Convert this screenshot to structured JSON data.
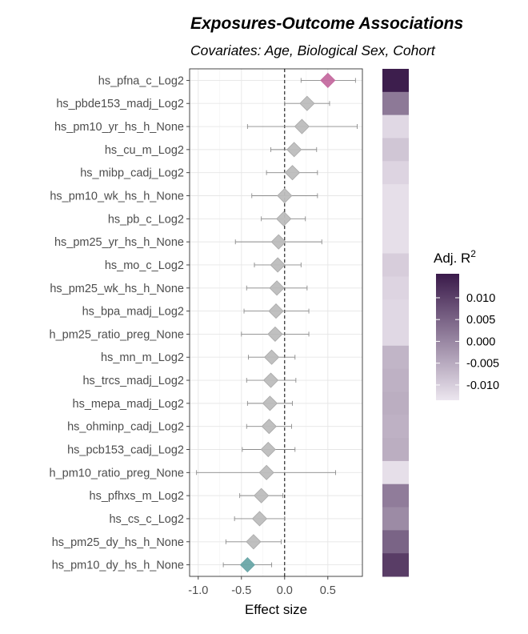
{
  "chart_data": {
    "type": "forest",
    "title": "Exposures-Outcome Associations",
    "subtitle": "Covariates: Age, Biological Sex,  Cohort",
    "xlabel": "Effect size",
    "ylabel": "",
    "xlim": [
      -1.1,
      0.9
    ],
    "xticks": [
      -1.0,
      -0.5,
      0.0,
      0.5
    ],
    "xtick_labels": [
      "-1.0",
      "-0.5",
      "0.0",
      "0.5"
    ],
    "reference_line": 0,
    "grid": true,
    "legend": {
      "title": "Adj. R",
      "title_superscript": "2",
      "placement": "right",
      "range": [
        -0.0135,
        0.0155
      ],
      "ticks": [
        0.01,
        0.005,
        0.0,
        -0.005,
        -0.01
      ],
      "tick_labels": [
        "0.010",
        "0.005",
        "0.000",
        "-0.005",
        "-0.010"
      ]
    },
    "colors": {
      "positive_significant": "#c56ba0",
      "negative_significant": "#6aa6a8",
      "not_significant": "#bdbdbd",
      "ci_line": "#8c8c8c",
      "r2_low": "#ece6ef",
      "r2_high": "#3a1a4a"
    },
    "rows": [
      {
        "label": "hs_pfna_c_Log2",
        "estimate": 0.5,
        "ci": [
          0.19,
          0.82
        ],
        "adj_r2": 0.015,
        "sig": "positive"
      },
      {
        "label": "hs_pbde153_madj_Log2",
        "estimate": 0.26,
        "ci": [
          0.0,
          0.52
        ],
        "adj_r2": 0.002,
        "sig": "none"
      },
      {
        "label": "hs_pm10_yr_hs_h_None",
        "estimate": 0.2,
        "ci": [
          -0.43,
          0.84
        ],
        "adj_r2": -0.0115,
        "sig": "none"
      },
      {
        "label": "hs_cu_m_Log2",
        "estimate": 0.11,
        "ci": [
          -0.16,
          0.37
        ],
        "adj_r2": -0.009,
        "sig": "none"
      },
      {
        "label": "hs_mibp_cadj_Log2",
        "estimate": 0.09,
        "ci": [
          -0.21,
          0.38
        ],
        "adj_r2": -0.011,
        "sig": "none"
      },
      {
        "label": "hs_pm10_wk_hs_h_None",
        "estimate": 0.0,
        "ci": [
          -0.38,
          0.38
        ],
        "adj_r2": -0.0125,
        "sig": "none"
      },
      {
        "label": "hs_pb_c_Log2",
        "estimate": -0.01,
        "ci": [
          -0.27,
          0.24
        ],
        "adj_r2": -0.0125,
        "sig": "none"
      },
      {
        "label": "hs_pm25_yr_hs_h_None",
        "estimate": -0.07,
        "ci": [
          -0.57,
          0.43
        ],
        "adj_r2": -0.0125,
        "sig": "none"
      },
      {
        "label": "hs_mo_c_Log2",
        "estimate": -0.08,
        "ci": [
          -0.35,
          0.19
        ],
        "adj_r2": -0.01,
        "sig": "none"
      },
      {
        "label": "hs_pm25_wk_hs_h_None",
        "estimate": -0.09,
        "ci": [
          -0.44,
          0.26
        ],
        "adj_r2": -0.011,
        "sig": "none"
      },
      {
        "label": "hs_bpa_madj_Log2",
        "estimate": -0.1,
        "ci": [
          -0.47,
          0.28
        ],
        "adj_r2": -0.0115,
        "sig": "none"
      },
      {
        "label": "h_pm25_ratio_preg_None",
        "estimate": -0.11,
        "ci": [
          -0.5,
          0.28
        ],
        "adj_r2": -0.0115,
        "sig": "none"
      },
      {
        "label": "hs_mn_m_Log2",
        "estimate": -0.15,
        "ci": [
          -0.42,
          0.12
        ],
        "adj_r2": -0.0065,
        "sig": "none"
      },
      {
        "label": "hs_trcs_madj_Log2",
        "estimate": -0.16,
        "ci": [
          -0.44,
          0.13
        ],
        "adj_r2": -0.006,
        "sig": "none"
      },
      {
        "label": "hs_mepa_madj_Log2",
        "estimate": -0.17,
        "ci": [
          -0.43,
          0.09
        ],
        "adj_r2": -0.0055,
        "sig": "none"
      },
      {
        "label": "hs_ohminp_cadj_Log2",
        "estimate": -0.18,
        "ci": [
          -0.44,
          0.08
        ],
        "adj_r2": -0.006,
        "sig": "none"
      },
      {
        "label": "hs_pcb153_cadj_Log2",
        "estimate": -0.19,
        "ci": [
          -0.49,
          0.12
        ],
        "adj_r2": -0.0055,
        "sig": "none"
      },
      {
        "label": "h_pm10_ratio_preg_None",
        "estimate": -0.21,
        "ci": [
          -1.02,
          0.59
        ],
        "adj_r2": -0.0125,
        "sig": "none"
      },
      {
        "label": "hs_pfhxs_m_Log2",
        "estimate": -0.27,
        "ci": [
          -0.52,
          -0.02
        ],
        "adj_r2": 0.0015,
        "sig": "none"
      },
      {
        "label": "hs_cs_c_Log2",
        "estimate": -0.29,
        "ci": [
          -0.58,
          0.0
        ],
        "adj_r2": -0.0005,
        "sig": "none"
      },
      {
        "label": "hs_pm25_dy_hs_h_None",
        "estimate": -0.36,
        "ci": [
          -0.68,
          -0.04
        ],
        "adj_r2": 0.005,
        "sig": "none"
      },
      {
        "label": "hs_pm10_dy_hs_h_None",
        "estimate": -0.43,
        "ci": [
          -0.71,
          -0.15
        ],
        "adj_r2": 0.0105,
        "sig": "negative"
      }
    ]
  }
}
